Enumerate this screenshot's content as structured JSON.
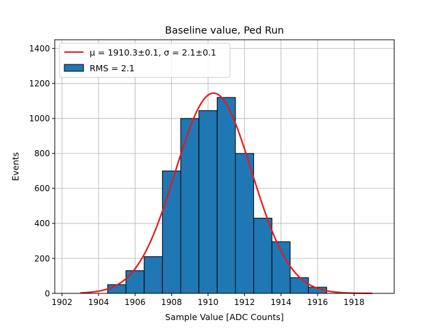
{
  "chart_data": {
    "type": "bar",
    "title": "Baseline value, Ped Run",
    "xlabel": "Sample Value [ADC Counts]",
    "ylabel": "Events",
    "xlim": [
      1901.6,
      1920.2
    ],
    "ylim": [
      0,
      1450
    ],
    "xticks": [
      1902,
      1904,
      1906,
      1908,
      1910,
      1912,
      1914,
      1916,
      1918
    ],
    "yticks": [
      0,
      200,
      400,
      600,
      800,
      1000,
      1200,
      1400
    ],
    "grid": true,
    "legend_position": "top-left",
    "bins": [
      {
        "x0": 1904.5,
        "x1": 1905.5,
        "count": 50
      },
      {
        "x0": 1905.5,
        "x1": 1906.5,
        "count": 130
      },
      {
        "x0": 1906.5,
        "x1": 1907.5,
        "count": 210
      },
      {
        "x0": 1907.5,
        "x1": 1908.5,
        "count": 700
      },
      {
        "x0": 1908.5,
        "x1": 1909.5,
        "count": 1000
      },
      {
        "x0": 1909.5,
        "x1": 1910.5,
        "count": 1045
      },
      {
        "x0": 1910.5,
        "x1": 1911.5,
        "count": 1120
      },
      {
        "x0": 1911.5,
        "x1": 1912.5,
        "count": 800
      },
      {
        "x0": 1912.5,
        "x1": 1913.5,
        "count": 430
      },
      {
        "x0": 1913.5,
        "x1": 1914.5,
        "count": 295
      },
      {
        "x0": 1914.5,
        "x1": 1915.5,
        "count": 90
      },
      {
        "x0": 1915.5,
        "x1": 1916.5,
        "count": 35
      }
    ],
    "fit": {
      "mu": 1910.3,
      "sigma": 2.1,
      "amplitude": 1145,
      "x_range": [
        1903,
        1919
      ]
    },
    "legend": [
      {
        "label": "μ = 1910.3±0.1, σ = 2.1±0.1",
        "kind": "line"
      },
      {
        "label": "RMS = 2.1",
        "kind": "patch"
      }
    ],
    "colors": {
      "bar_fill": "#1f77b4",
      "bar_edge": "#000000",
      "fit_line": "#e41a1c",
      "grid": "#b0b0b0"
    }
  }
}
